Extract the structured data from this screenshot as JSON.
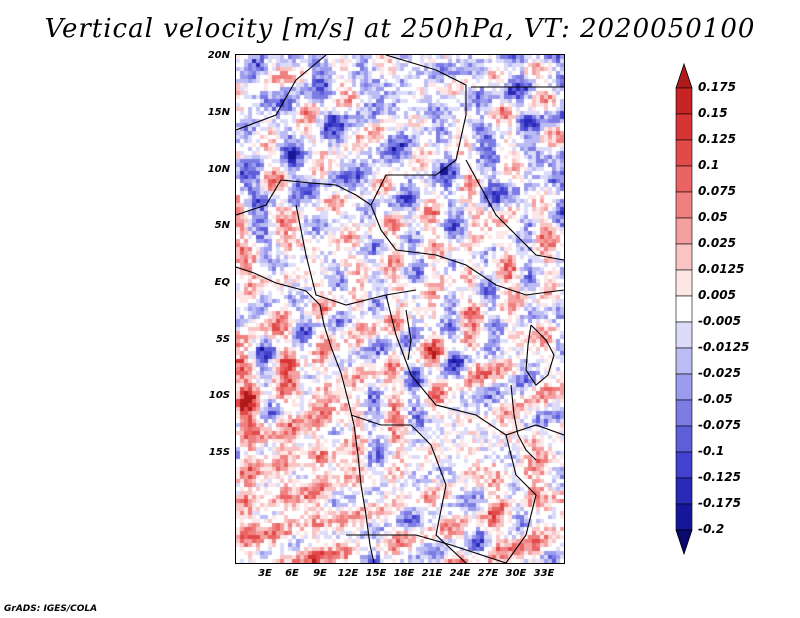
{
  "title": "Vertical velocity [m/s] at 250hPa, VT: 2020050100",
  "credit": "GrADS: IGES/COLA",
  "map": {
    "region": "Central Africa",
    "variable": "Vertical velocity",
    "units": "m/s",
    "level": "250hPa",
    "valid_time": "2020050100",
    "lat_labels": [
      "20N",
      "15N",
      "10N",
      "5N",
      "EQ",
      "5S",
      "10S",
      "15S"
    ],
    "lon_labels": [
      "3E",
      "6E",
      "9E",
      "12E",
      "15E",
      "18E",
      "21E",
      "24E",
      "27E",
      "30E",
      "33E"
    ]
  },
  "colorbar": {
    "levels": [
      "0.175",
      "0.15",
      "0.125",
      "0.1",
      "0.075",
      "0.05",
      "0.025",
      "0.0125",
      "0.005",
      "-0.005",
      "-0.0125",
      "-0.025",
      "-0.05",
      "-0.075",
      "-0.1",
      "-0.125",
      "-0.175",
      "-0.2"
    ],
    "colors": [
      "#b01a1a",
      "#c62424",
      "#d83434",
      "#e24a4a",
      "#ea6464",
      "#f08080",
      "#f5a0a0",
      "#f9c4c4",
      "#fde6e6",
      "#ffffff",
      "#dcdcfa",
      "#bcbcf4",
      "#9c9cee",
      "#7c7ce4",
      "#5e5eda",
      "#4242ce",
      "#2a2ab8",
      "#16169a",
      "#0a0a6e"
    ]
  },
  "colors": {
    "positive": "#e06060",
    "negative": "#6060e0",
    "land_border": "#000000"
  }
}
